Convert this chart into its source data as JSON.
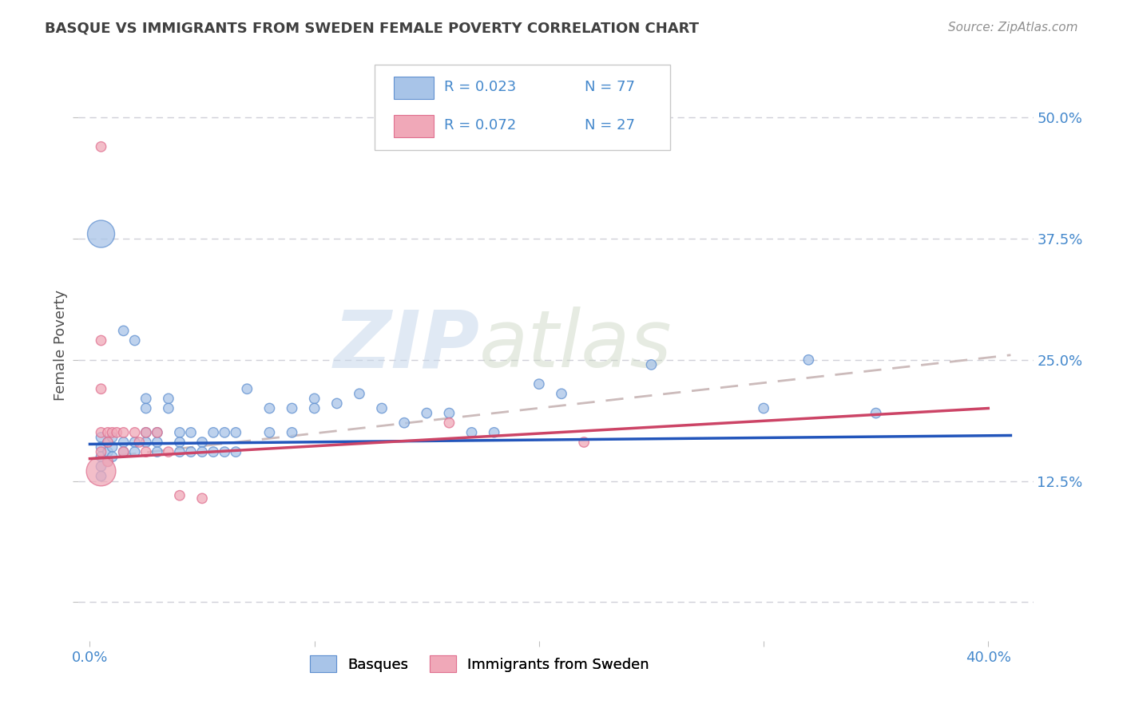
{
  "title": "BASQUE VS IMMIGRANTS FROM SWEDEN FEMALE POVERTY CORRELATION CHART",
  "source": "Source: ZipAtlas.com",
  "ylabel": "Female Poverty",
  "xlim": [
    -0.005,
    0.42
  ],
  "ylim": [
    -0.04,
    0.57
  ],
  "xticks": [
    0.0,
    0.1,
    0.2,
    0.3,
    0.4
  ],
  "xticklabels": [
    "0.0%",
    "",
    "",
    "",
    "40.0%"
  ],
  "yticks": [
    0.0,
    0.125,
    0.25,
    0.375,
    0.5
  ],
  "yticklabels": [
    "",
    "12.5%",
    "25.0%",
    "37.5%",
    "50.0%"
  ],
  "blue_color": "#a8c4e8",
  "pink_color": "#f0a8b8",
  "blue_edge_color": "#6090d0",
  "pink_edge_color": "#e07090",
  "blue_line_color": "#2255bb",
  "pink_line_color": "#cc4466",
  "dashed_line_color": "#ccbbbb",
  "legend_R1": "R = 0.023",
  "legend_N1": "N = 77",
  "legend_R2": "R = 0.072",
  "legend_N2": "N = 27",
  "legend_label1": "Basques",
  "legend_label2": "Immigrants from Sweden",
  "watermark_zip": "ZIP",
  "watermark_atlas": "atlas",
  "blue_scatter_x": [
    0.005,
    0.005,
    0.005,
    0.005,
    0.005,
    0.008,
    0.008,
    0.008,
    0.01,
    0.01,
    0.01,
    0.015,
    0.015,
    0.015,
    0.02,
    0.02,
    0.02,
    0.025,
    0.025,
    0.025,
    0.025,
    0.03,
    0.03,
    0.03,
    0.035,
    0.035,
    0.04,
    0.04,
    0.04,
    0.045,
    0.045,
    0.05,
    0.05,
    0.055,
    0.055,
    0.06,
    0.06,
    0.065,
    0.065,
    0.07,
    0.08,
    0.08,
    0.09,
    0.09,
    0.1,
    0.1,
    0.11,
    0.12,
    0.13,
    0.14,
    0.15,
    0.16,
    0.17,
    0.18,
    0.2,
    0.21,
    0.25,
    0.3,
    0.32,
    0.35,
    0.005
  ],
  "blue_scatter_y": [
    0.17,
    0.16,
    0.15,
    0.14,
    0.13,
    0.165,
    0.155,
    0.145,
    0.17,
    0.16,
    0.15,
    0.28,
    0.165,
    0.155,
    0.27,
    0.165,
    0.155,
    0.21,
    0.2,
    0.175,
    0.165,
    0.175,
    0.165,
    0.155,
    0.21,
    0.2,
    0.175,
    0.165,
    0.155,
    0.175,
    0.155,
    0.165,
    0.155,
    0.175,
    0.155,
    0.175,
    0.155,
    0.175,
    0.155,
    0.22,
    0.2,
    0.175,
    0.2,
    0.175,
    0.21,
    0.2,
    0.205,
    0.215,
    0.2,
    0.185,
    0.195,
    0.195,
    0.175,
    0.175,
    0.225,
    0.215,
    0.245,
    0.2,
    0.25,
    0.195,
    0.38
  ],
  "blue_scatter_size": [
    80,
    80,
    80,
    80,
    80,
    80,
    80,
    80,
    80,
    80,
    80,
    80,
    80,
    80,
    80,
    80,
    80,
    80,
    80,
    80,
    80,
    80,
    80,
    80,
    80,
    80,
    80,
    80,
    80,
    80,
    80,
    80,
    80,
    80,
    80,
    80,
    80,
    80,
    80,
    80,
    80,
    80,
    80,
    80,
    80,
    80,
    80,
    80,
    80,
    80,
    80,
    80,
    80,
    80,
    80,
    80,
    80,
    80,
    80,
    80,
    600
  ],
  "pink_scatter_x": [
    0.005,
    0.005,
    0.005,
    0.005,
    0.005,
    0.008,
    0.008,
    0.008,
    0.01,
    0.012,
    0.015,
    0.015,
    0.02,
    0.022,
    0.025,
    0.025,
    0.03,
    0.035,
    0.04,
    0.05,
    0.16,
    0.22,
    0.005
  ],
  "pink_scatter_y": [
    0.47,
    0.27,
    0.22,
    0.175,
    0.155,
    0.175,
    0.165,
    0.145,
    0.175,
    0.175,
    0.175,
    0.155,
    0.175,
    0.165,
    0.175,
    0.155,
    0.175,
    0.155,
    0.11,
    0.107,
    0.185,
    0.165,
    0.135
  ],
  "pink_scatter_size": [
    80,
    80,
    80,
    80,
    80,
    80,
    80,
    80,
    80,
    80,
    80,
    80,
    80,
    80,
    80,
    80,
    80,
    80,
    80,
    80,
    80,
    80,
    700
  ],
  "blue_trend_x": [
    0.0,
    0.41
  ],
  "blue_trend_y": [
    0.163,
    0.172
  ],
  "pink_trend_x": [
    0.0,
    0.4
  ],
  "pink_trend_y": [
    0.148,
    0.2
  ],
  "dashed_trend_x": [
    0.0,
    0.41
  ],
  "dashed_trend_y": [
    0.148,
    0.255
  ],
  "grid_color": "#d0d0d8",
  "background_color": "#ffffff",
  "title_color": "#404040",
  "source_color": "#909090",
  "tick_color": "#4488cc",
  "ylabel_color": "#505050"
}
